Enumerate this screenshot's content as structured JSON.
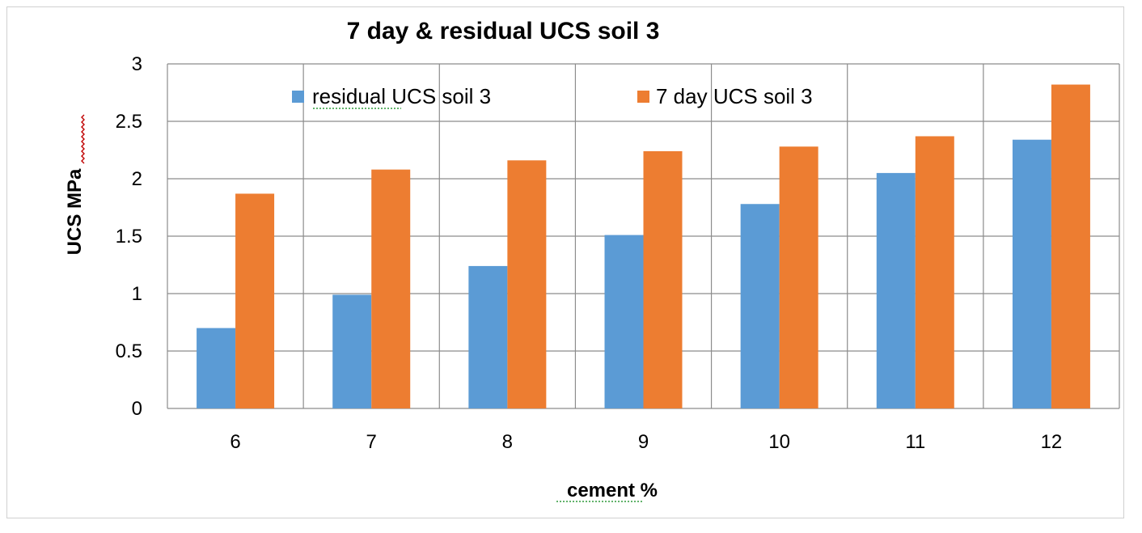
{
  "chart_data": {
    "type": "bar",
    "title": "7 day & residual UCS soil 3",
    "xlabel": "cement %",
    "ylabel": "UCS MPa",
    "categories": [
      "6",
      "7",
      "8",
      "9",
      "10",
      "11",
      "12"
    ],
    "ylim": [
      0,
      3
    ],
    "yticks": [
      "0",
      "0.5",
      "1",
      "1.5",
      "2",
      "2.5",
      "3"
    ],
    "grid": true,
    "legend_position": "top",
    "series": [
      {
        "name": "residual UCS soil 3",
        "color": "#5b9bd5",
        "values": [
          0.7,
          0.99,
          1.24,
          1.51,
          1.78,
          2.05,
          2.34
        ]
      },
      {
        "name": "7 day UCS soil 3",
        "color": "#ed7d31",
        "values": [
          1.87,
          2.08,
          2.16,
          2.24,
          2.28,
          2.37,
          2.82
        ]
      }
    ]
  }
}
